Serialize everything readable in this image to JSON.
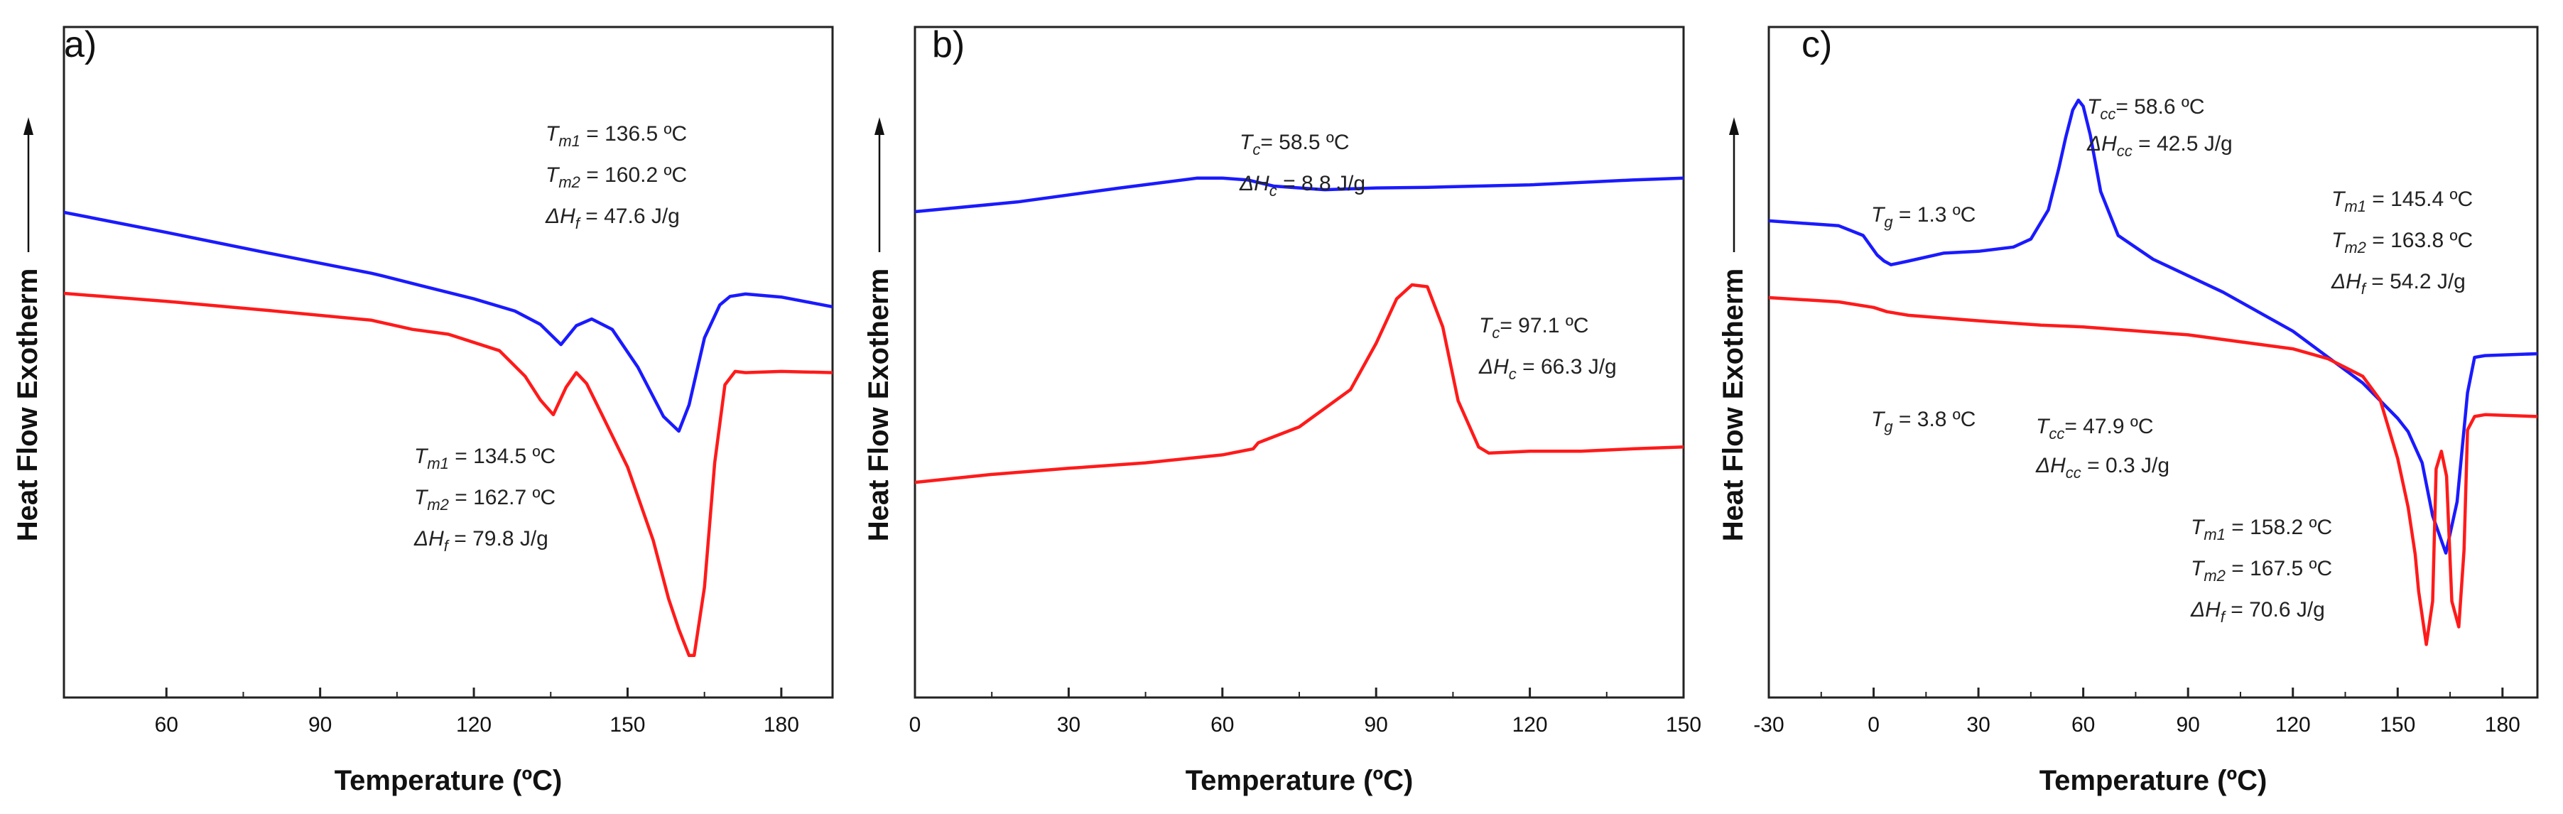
{
  "chart_data": [
    {
      "type": "line",
      "panel_label": "a)",
      "xlabel": "Temperature (ºC)",
      "ylabel": "Heat Flow  Exotherm",
      "xlim": [
        40,
        190
      ],
      "ylim": [
        0,
        100
      ],
      "xticks": [
        60,
        90,
        120,
        150,
        180
      ],
      "y_ticks_shown": false,
      "series": [
        {
          "name": "blue",
          "color": "#1a1aff",
          "x": [
            40,
            60,
            80,
            100,
            102,
            110,
            120,
            128,
            133,
            137,
            140,
            143,
            147,
            152,
            157,
            160,
            162,
            165,
            168,
            170,
            173,
            180,
            190
          ],
          "y": [
            69.6,
            66.3,
            62.9,
            59.6,
            59.2,
            57.5,
            55.4,
            53.4,
            51.2,
            47.9,
            51.0,
            52.1,
            50.4,
            44.2,
            36.1,
            33.7,
            38.0,
            49.0,
            54.4,
            55.8,
            56.2,
            55.7,
            54.1
          ]
        },
        {
          "name": "red",
          "color": "#ff1a1a",
          "x": [
            40,
            60,
            80,
            100,
            108,
            115,
            125,
            130,
            133,
            135.5,
            138,
            140,
            142,
            145,
            150,
            155,
            158,
            160,
            162,
            163,
            165,
            167,
            169,
            171,
            173,
            180,
            190
          ],
          "y": [
            56.3,
            55.0,
            53.5,
            51.9,
            50.4,
            49.6,
            46.9,
            42.7,
            38.8,
            36.4,
            40.9,
            43.3,
            41.5,
            36.4,
            27.8,
            15.8,
            6.2,
            1.2,
            -3.1,
            -3.1,
            8.1,
            28.5,
            41.3,
            43.5,
            43.3,
            43.5,
            43.3
          ]
        }
      ],
      "annotations": [
        {
          "lines": [
            "Tm1 = 136.5 ºC",
            "Tm2 = 160.2 ºC",
            "ΔHf = 47.6 J/g"
          ]
        },
        {
          "lines": [
            "Tm1 = 134.5 ºC",
            "Tm2 = 162.7 ºC",
            "ΔHf = 79.8 J/g"
          ]
        }
      ]
    },
    {
      "type": "line",
      "panel_label": "b)",
      "xlabel": "Temperature (ºC)",
      "ylabel": "Heat Flow  Exotherm",
      "xlim": [
        0,
        150
      ],
      "ylim": [
        0,
        100
      ],
      "xticks": [
        0,
        30,
        60,
        90,
        120,
        150
      ],
      "y_ticks_shown": false,
      "series": [
        {
          "name": "blue",
          "color": "#1a1aff",
          "x": [
            0,
            20,
            40,
            55,
            60,
            65,
            70,
            80,
            90,
            100,
            120,
            140,
            150
          ],
          "y": [
            69.7,
            71.3,
            73.6,
            75.2,
            75.2,
            74.9,
            73.9,
            73.3,
            73.6,
            73.7,
            74.1,
            74.9,
            75.2
          ]
        },
        {
          "name": "red",
          "color": "#ff1a1a",
          "x": [
            0,
            15,
            30,
            45,
            60,
            66,
            67,
            75,
            85,
            90,
            94,
            97,
            100,
            103,
            106,
            110,
            112,
            120,
            130,
            140,
            150
          ],
          "y": [
            25.3,
            26.6,
            27.6,
            28.5,
            29.8,
            30.8,
            31.8,
            34.4,
            40.5,
            48.1,
            55.4,
            57.7,
            57.4,
            50.8,
            38.7,
            31.1,
            30.1,
            30.4,
            30.4,
            30.8,
            31.1
          ]
        }
      ],
      "annotations": [
        {
          "lines": [
            "Tc= 58.5 ºC",
            "ΔHc = 8.8 J/g"
          ]
        },
        {
          "lines": [
            "Tc= 97.1 ºC",
            "ΔHc = 66.3 J/g"
          ]
        }
      ]
    },
    {
      "type": "line",
      "panel_label": "c)",
      "xlabel": "Temperature (ºC)",
      "ylabel": "Heat Flow  Exotherm",
      "xlim": [
        -30,
        190
      ],
      "ylim": [
        0,
        100
      ],
      "xticks": [
        -30,
        0,
        30,
        60,
        90,
        120,
        150,
        180
      ],
      "y_ticks_shown": false,
      "series": [
        {
          "name": "blue",
          "color": "#1a1aff",
          "x": [
            -30,
            -10,
            -3,
            1,
            3,
            5,
            10,
            20,
            30,
            40,
            45,
            50,
            53,
            55,
            57,
            58.6,
            60,
            62,
            65,
            70,
            80,
            100,
            120,
            140,
            145,
            150,
            153,
            157,
            160,
            163.8,
            167,
            170,
            172,
            175,
            190
          ],
          "y": [
            68.2,
            67.4,
            65.8,
            62.6,
            61.6,
            61.0,
            61.6,
            62.9,
            63.2,
            63.9,
            65.2,
            70.0,
            76.8,
            81.9,
            86.4,
            88.0,
            87.0,
            82.3,
            73.0,
            65.8,
            61.9,
            56.5,
            50.1,
            41.6,
            38.7,
            35.8,
            33.6,
            28.5,
            19.8,
            13.7,
            22.1,
            40.0,
            45.8,
            46.1,
            46.4
          ]
        },
        {
          "name": "red",
          "color": "#ff1a1a",
          "x": [
            -30,
            -10,
            0,
            3.8,
            10,
            30,
            47.9,
            60,
            90,
            120,
            130,
            140,
            145,
            150,
            153,
            155,
            156,
            158.2,
            160,
            161,
            162.5,
            164,
            165.5,
            167.5,
            169,
            170,
            172,
            175,
            190
          ],
          "y": [
            55.6,
            54.9,
            54.0,
            53.3,
            52.7,
            51.8,
            51.1,
            50.8,
            49.5,
            47.2,
            45.6,
            42.7,
            38.8,
            29.2,
            21.2,
            13.5,
            7.4,
            -1.3,
            5.8,
            27.5,
            30.4,
            26.3,
            5.8,
            1.6,
            14.2,
            33.9,
            36.1,
            36.4,
            36.1
          ]
        }
      ],
      "annotations": [
        {
          "lines": [
            "Tcc= 58.6 ºC",
            "ΔHcc = 42.5 J/g"
          ]
        },
        {
          "lines": [
            "Tg = 1.3 ºC"
          ]
        },
        {
          "lines": [
            "Tm1 = 145.4 ºC",
            "Tm2 = 163.8 ºC",
            "ΔHf = 54.2 J/g"
          ]
        },
        {
          "lines": [
            "Tg = 3.8 ºC"
          ]
        },
        {
          "lines": [
            "Tcc= 47.9 ºC",
            "ΔHcc = 0.3 J/g"
          ]
        },
        {
          "lines": [
            "Tm1 = 158.2 ºC",
            "Tm2 = 167.5 ºC",
            "ΔHf = 70.6 J/g"
          ]
        }
      ]
    }
  ]
}
